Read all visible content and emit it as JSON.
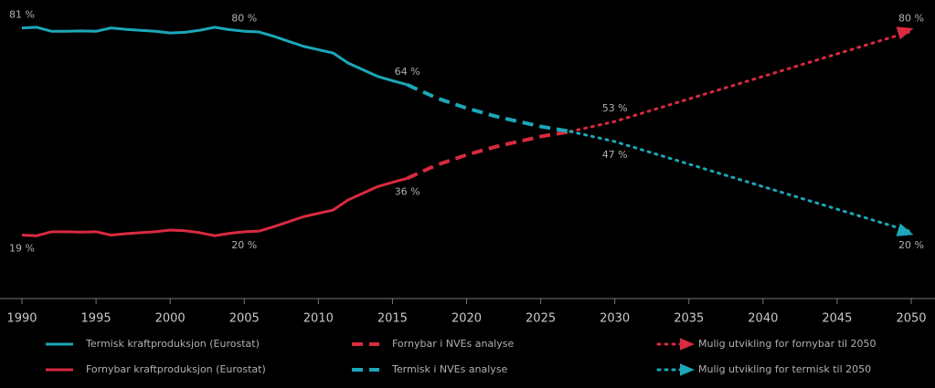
{
  "chart_data": {
    "type": "line",
    "xlim": [
      1990,
      2050
    ],
    "xticks": [
      1990,
      1995,
      2000,
      2005,
      2010,
      2015,
      2020,
      2025,
      2030,
      2035,
      2040,
      2045,
      2050
    ],
    "ylim": [
      0,
      85
    ],
    "series": [
      {
        "name": "Termisk kraftproduksjon (Eurostat)",
        "color": "#1ba8b8",
        "style": "solid",
        "x": [
          1990,
          1991,
          1992,
          1993,
          1994,
          1995,
          1996,
          1997,
          1998,
          1999,
          2000,
          2001,
          2002,
          2003,
          2004,
          2005,
          2006,
          2007,
          2008,
          2009,
          2010,
          2011,
          2012,
          2013,
          2014,
          2015,
          2016
        ],
        "values": [
          81,
          81.2,
          80,
          80,
          80.1,
          80,
          81,
          80.6,
          80.3,
          80,
          79.5,
          79.7,
          80.3,
          81.2,
          80.5,
          80,
          79.8,
          78.5,
          77,
          75.5,
          74.5,
          73.5,
          70.5,
          68.5,
          66.5,
          65.2,
          64
        ]
      },
      {
        "name": "Fornybar kraftproduksjon (Eurostat)",
        "color": "#d92a3f",
        "style": "solid",
        "x": [
          1990,
          1991,
          1992,
          1993,
          1994,
          1995,
          1996,
          1997,
          1998,
          1999,
          2000,
          2001,
          2002,
          2003,
          2004,
          2005,
          2006,
          2007,
          2008,
          2009,
          2010,
          2011,
          2012,
          2013,
          2014,
          2015,
          2016
        ],
        "values": [
          19,
          18.8,
          20,
          20,
          19.9,
          20,
          19,
          19.4,
          19.7,
          20,
          20.5,
          20.3,
          19.7,
          18.8,
          19.5,
          20,
          20.2,
          21.5,
          23,
          24.5,
          25.5,
          26.5,
          29.5,
          31.5,
          33.5,
          34.8,
          36
        ]
      },
      {
        "name": "Fornybar i NVEs analyse",
        "color": "#d92a3f",
        "style": "dashed",
        "x": [
          2016,
          2018,
          2020,
          2022,
          2025,
          2027
        ],
        "values": [
          36,
          40,
          43,
          45.5,
          48.5,
          50
        ]
      },
      {
        "name": "Termisk i NVEs analyse",
        "color": "#1ba8b8",
        "style": "dashed",
        "x": [
          2016,
          2018,
          2020,
          2022,
          2025,
          2027
        ],
        "values": [
          64,
          60,
          57,
          54.5,
          51.5,
          50
        ]
      },
      {
        "name": "Mulig utvikling for fornybar til 2050",
        "color": "#d92a3f",
        "style": "dotted",
        "x": [
          2027,
          2030,
          2050
        ],
        "values": [
          50,
          53,
          80
        ]
      },
      {
        "name": "Mulig utvikling for termisk til 2050",
        "color": "#1ba8b8",
        "style": "dotted",
        "x": [
          2027,
          2030,
          2050
        ],
        "values": [
          50,
          47,
          20
        ]
      }
    ],
    "annotations": [
      {
        "text": "81 %",
        "x": 1990,
        "y": 81
      },
      {
        "text": "80 %",
        "x": 2005,
        "y": 80
      },
      {
        "text": "64 %",
        "x": 2016,
        "y": 64
      },
      {
        "text": "53 %",
        "x": 2030,
        "y": 53
      },
      {
        "text": "80 %",
        "x": 2050,
        "y": 80
      },
      {
        "text": "19 %",
        "x": 1990,
        "y": 19
      },
      {
        "text": "20 %",
        "x": 2005,
        "y": 20
      },
      {
        "text": "36 %",
        "x": 2016,
        "y": 36
      },
      {
        "text": "47 %",
        "x": 2030,
        "y": 47
      },
      {
        "text": "20 %",
        "x": 2050,
        "y": 20
      }
    ]
  }
}
